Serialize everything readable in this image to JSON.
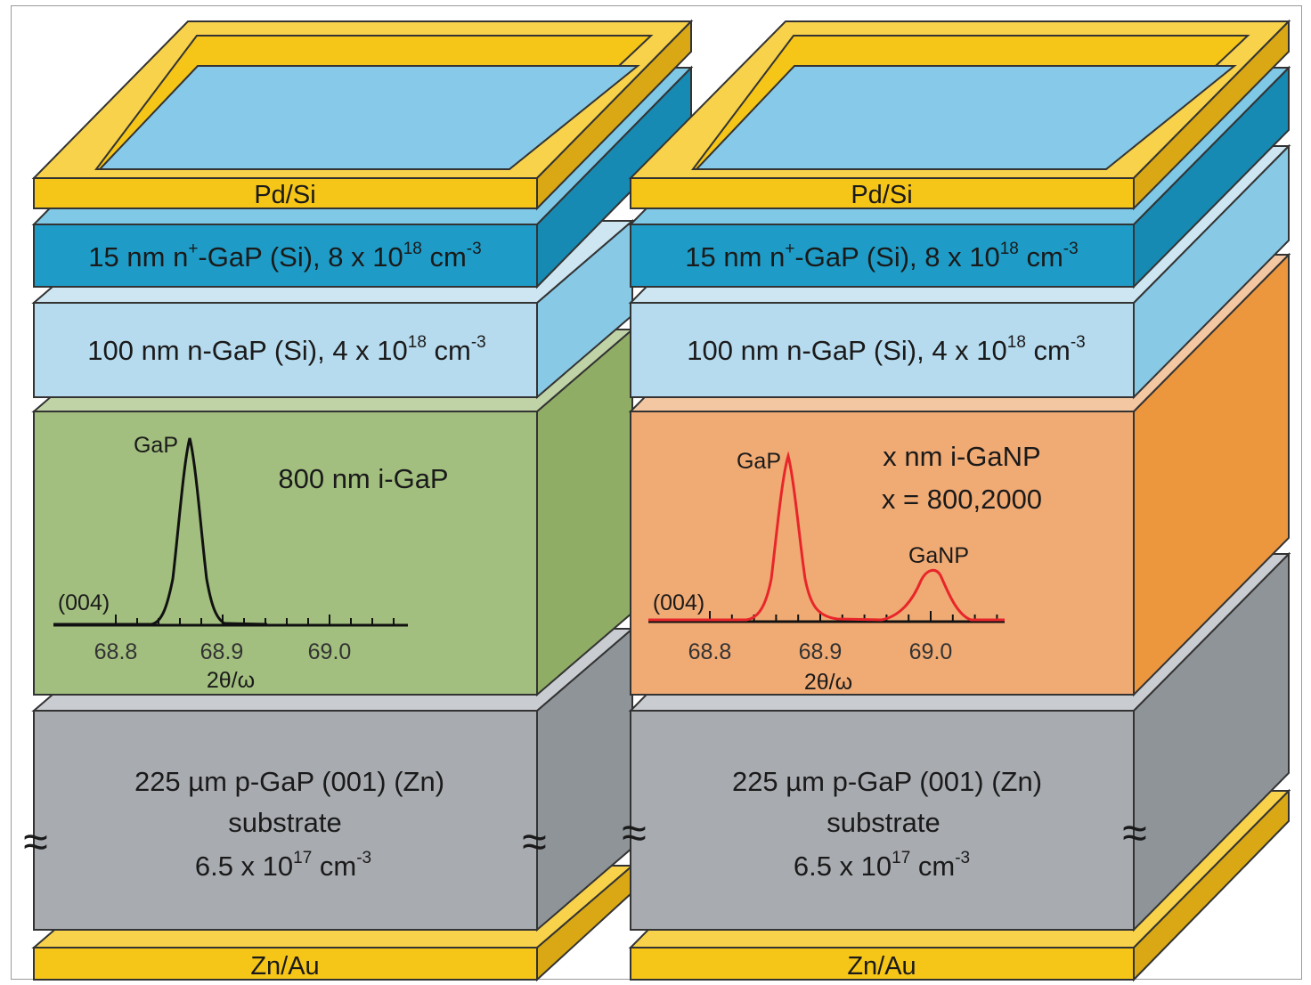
{
  "colors": {
    "gold": "#f5c518",
    "gold_side": "#d9a814",
    "gold_top": "#f8d24a",
    "window": "#87c9e8",
    "n_plus": "#1e9cc7",
    "n_plus_side": "#168ab2",
    "n_plus_top": "#7fc8e6",
    "n_gap": "#b7dbee",
    "n_gap_side": "#88c9e6",
    "n_gap_top": "#cde6f2",
    "i_gap": "#a2bf7f",
    "i_gap_side": "#8fad64",
    "i_gap_top": "#c0d3a6",
    "i_ganp": "#f0aa74",
    "i_ganp_side": "#ec963e",
    "i_ganp_top": "#f3c7a2",
    "sub": "#a8abb0",
    "sub_side": "#8f9499",
    "sub_top": "#c9ccd0",
    "xrd_black": "#111111",
    "xrd_red": "#e8262a"
  },
  "left": {
    "top_contact": "Pd/Si",
    "nplus": {
      "main": "15 nm n",
      "sup1": "+",
      "rest": "-GaP (Si), 8 x 10",
      "sup2": "18",
      "unit": " cm",
      "sup3": "-3"
    },
    "ngap": {
      "main": "100 nm n-GaP (Si), 4 x 10",
      "sup1": "18",
      "unit": " cm",
      "sup2": "-3"
    },
    "intrinsic": {
      "line1": "800 nm i-GaP"
    },
    "xrd": {
      "peak_label": "GaP",
      "reflection": "(004)",
      "ticks": [
        "68.8",
        "68.9",
        "69.0"
      ],
      "xlabel": "2θ/ω"
    },
    "substrate": {
      "line1": "225 µm p-GaP (001) (Zn)",
      "line2": "substrate",
      "line3_main": "6.5 x 10",
      "line3_sup": "17",
      "line3_unit": " cm",
      "line3_sup2": "-3"
    },
    "break_mark": "≈",
    "bottom_contact": "Zn/Au"
  },
  "right": {
    "top_contact": "Pd/Si",
    "nplus": {
      "main": "15 nm n",
      "sup1": "+",
      "rest": "-GaP (Si), 8 x 10",
      "sup2": "18",
      "unit": " cm",
      "sup3": "-3"
    },
    "ngap": {
      "main": "100 nm n-GaP (Si), 4 x 10",
      "sup1": "18",
      "unit": " cm",
      "sup2": "-3"
    },
    "intrinsic": {
      "line1": "x nm i-GaNP",
      "line2": "x = 800,2000"
    },
    "xrd": {
      "peak_label": "GaP",
      "peak2_label": "GaNP",
      "reflection": "(004)",
      "ticks": [
        "68.8",
        "68.9",
        "69.0"
      ],
      "xlabel": "2θ/ω"
    },
    "substrate": {
      "line1": "225 µm p-GaP (001) (Zn)",
      "line2": "substrate",
      "line3_main": "6.5 x 10",
      "line3_sup": "17",
      "line3_unit": " cm",
      "line3_sup2": "-3"
    },
    "break_mark": "≈",
    "bottom_contact": "Zn/Au"
  }
}
